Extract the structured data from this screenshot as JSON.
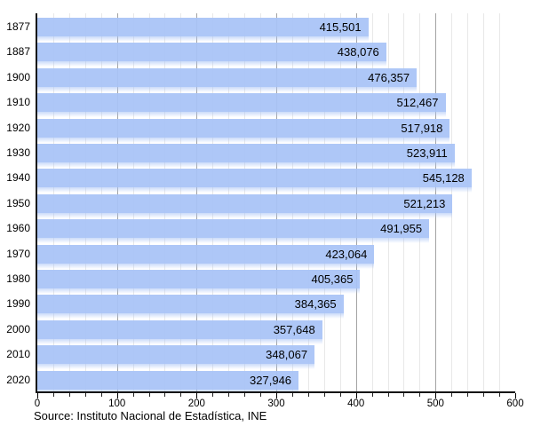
{
  "chart_data": {
    "type": "bar",
    "orientation": "horizontal",
    "title": "",
    "xlabel": "",
    "ylabel": "",
    "categories": [
      "1877",
      "1887",
      "1900",
      "1910",
      "1920",
      "1930",
      "1940",
      "1950",
      "1960",
      "1970",
      "1980",
      "1990",
      "2000",
      "2010",
      "2020"
    ],
    "values": [
      415501,
      438076,
      476357,
      512467,
      517918,
      523911,
      545128,
      521213,
      491955,
      423064,
      405365,
      384365,
      357648,
      348067,
      327946
    ],
    "value_labels": [
      "415,501",
      "438,076",
      "476,357",
      "512,467",
      "517,918",
      "523,911",
      "545,128",
      "521,213",
      "491,955",
      "423,064",
      "405,365",
      "384,365",
      "357,648",
      "348,067",
      "327,946"
    ],
    "xlim": [
      0,
      600
    ],
    "x_ticks": [
      0,
      100,
      200,
      300,
      400,
      500,
      600
    ],
    "minor_tick_step": 20,
    "value_per_axis_unit": 1000,
    "grid": "vertical",
    "legend": null
  },
  "source": {
    "text": "Source: Instituto Nacional de Estadística, INE"
  },
  "colors": {
    "bar": "#a8c3f6",
    "grid_minor": "#e8e8e8",
    "grid_major": "#a3a3a3",
    "axis": "#111111",
    "text": "#000000",
    "background": "#ffffff"
  }
}
